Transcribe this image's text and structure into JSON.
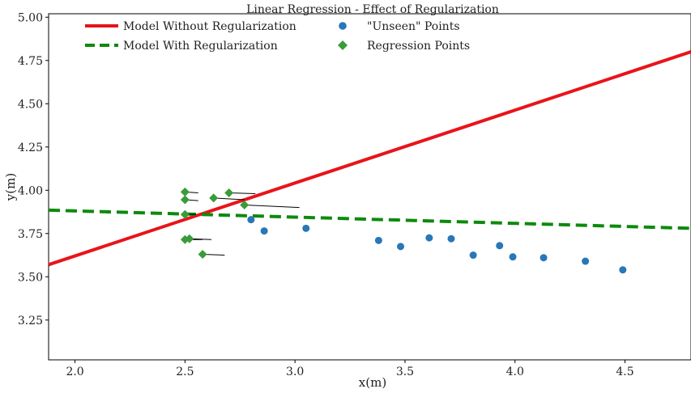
{
  "chart_data": {
    "type": "scatter",
    "title": "Linear Regression - Effect of Regularization",
    "xlabel": "x(m)",
    "ylabel": "y(m)",
    "xlim": [
      1.88,
      4.8
    ],
    "ylim": [
      3.02,
      5.02
    ],
    "xticks": [
      "2.0",
      "2.5",
      "3.0",
      "3.5",
      "4.0",
      "4.5"
    ],
    "xtick_values": [
      2.0,
      2.5,
      3.0,
      3.5,
      4.0,
      4.5
    ],
    "yticks": [
      "3.25",
      "3.50",
      "3.75",
      "4.00",
      "4.25",
      "4.50",
      "4.75",
      "5.00"
    ],
    "ytick_values": [
      3.25,
      3.5,
      3.75,
      4.0,
      4.25,
      4.5,
      4.75,
      5.0
    ],
    "grid": false,
    "legend_position": "top-left",
    "legend": [
      {
        "label": "Model Without Regularization",
        "series": "model_without_reg"
      },
      {
        "label": "\"Unseen\" Points",
        "series": "unseen_points"
      },
      {
        "label": "Model With Regularization",
        "series": "model_with_reg"
      },
      {
        "label": "Regression Points",
        "series": "regression_points"
      }
    ],
    "series": [
      {
        "name": "Model Without Regularization",
        "key": "model_without_reg",
        "kind": "line",
        "style": "solid",
        "color": "#e8141a",
        "points": [
          [
            1.88,
            3.57
          ],
          [
            4.8,
            4.8
          ]
        ]
      },
      {
        "name": "Model With Regularization",
        "key": "model_with_reg",
        "kind": "line",
        "style": "dashed",
        "color": "#0d8a0d",
        "points": [
          [
            1.88,
            3.885
          ],
          [
            4.8,
            3.78
          ]
        ]
      },
      {
        "name": "\"Unseen\" Points",
        "key": "unseen_points",
        "kind": "scatter",
        "marker": "circle",
        "color": "#2877b8",
        "x": [
          2.8,
          2.86,
          3.05,
          3.38,
          3.48,
          3.61,
          3.71,
          3.81,
          3.93,
          3.99,
          4.13,
          4.32,
          4.49
        ],
        "y": [
          3.83,
          3.765,
          3.78,
          3.71,
          3.675,
          3.725,
          3.72,
          3.625,
          3.68,
          3.615,
          3.61,
          3.59,
          3.54
        ]
      },
      {
        "name": "Regression Points",
        "key": "regression_points",
        "kind": "scatter",
        "marker": "diamond",
        "color": "#3a9b3a",
        "x": [
          2.5,
          2.5,
          2.5,
          2.5,
          2.52,
          2.58,
          2.63,
          2.7,
          2.77
        ],
        "y": [
          3.99,
          3.945,
          3.86,
          3.715,
          3.72,
          3.63,
          3.955,
          3.985,
          3.915
        ],
        "arrow_end_x": [
          2.56,
          2.56,
          2.55,
          2.58,
          2.62,
          2.68,
          2.77,
          2.82,
          3.02
        ],
        "arrow_end_y": [
          3.985,
          3.94,
          3.86,
          3.715,
          3.715,
          3.625,
          3.945,
          3.98,
          3.9
        ]
      }
    ]
  }
}
